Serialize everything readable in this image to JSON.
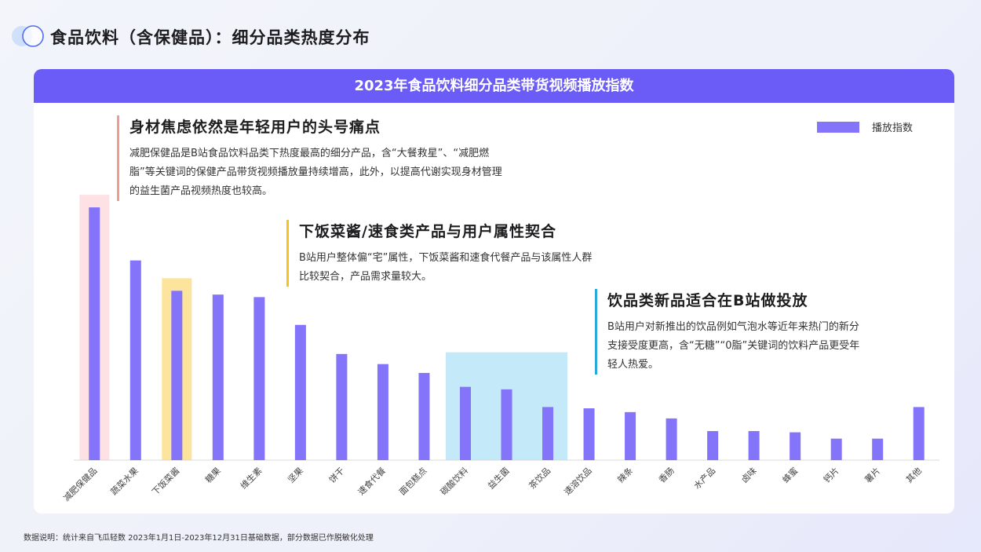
{
  "page": {
    "title": "食品饮料（含保健品）：细分品类热度分布",
    "footnote": "数据说明：统计来自飞瓜轻数 2023年1月1日-2023年12月31日基础数据，部分数据已作脱敏化处理"
  },
  "chart_data": {
    "type": "bar",
    "title": "2023年食品饮料细分品类带货视频播放指数",
    "categories": [
      "减肥保健品",
      "蔬菜水果",
      "下饭菜酱",
      "糖果",
      "维生素",
      "坚果",
      "饼干",
      "速食代餐",
      "面包糕点",
      "碳酸饮料",
      "益生菌",
      "茶饮品",
      "速溶饮品",
      "辣条",
      "香肠",
      "水产品",
      "卤味",
      "蜂蜜",
      "钙片",
      "薯片",
      "其他"
    ],
    "series": [
      {
        "name": "播放指数",
        "values": [
          100,
          79,
          67,
          65.5,
          64.5,
          53.5,
          42,
          38,
          34.5,
          29,
          28,
          21,
          20.5,
          19,
          16.5,
          11.5,
          11.5,
          11,
          8.5,
          8.5,
          21
        ]
      }
    ],
    "ylim": [
      0,
      105
    ],
    "legend": "top-right",
    "grid": false,
    "highlights": [
      {
        "categories": [
          "减肥保健品"
        ],
        "color": "#fde1e4"
      },
      {
        "categories": [
          "下饭菜酱"
        ],
        "color": "#fde49c"
      },
      {
        "categories": [
          "碳酸饮料",
          "益生菌",
          "茶饮品"
        ],
        "color": "#c4e9f8"
      }
    ],
    "bar_color": "#8374f9"
  },
  "callouts": [
    {
      "title": "身材焦虑依然是年轻用户的头号痛点",
      "text": "减肥保健品是B站食品饮料品类下热度最高的细分产品，含“大餐救星”、“减肥燃脂”等关键词的保健产品带货视频播放量持续增高，此外，以提高代谢实现身材管理的益生菌产品视频热度也较高。",
      "color": "#f19a93"
    },
    {
      "title": "下饭菜酱/速食类产品与用户属性契合",
      "text": "B站用户整体偏“宅”属性，下饭菜酱和速食代餐产品与该属性人群比较契合，产品需求量较大。",
      "color": "#f6c21a"
    },
    {
      "title": "饮品类新品适合在B站做投放",
      "text": "B站用户对新推出的饮品例如气泡水等近年来热门的新分支接受度更高，含“无糖”“0脂”关键词的饮料产品更受年轻人热爱。",
      "color": "#2aa7db"
    }
  ],
  "icons": {
    "logo": "double-circle-icon"
  }
}
